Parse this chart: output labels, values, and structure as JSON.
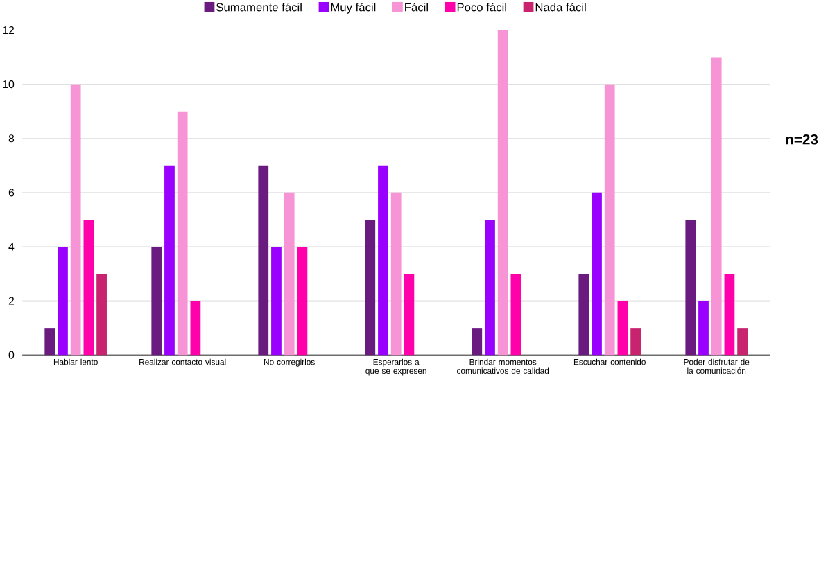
{
  "chart_data": {
    "type": "bar",
    "categories": [
      "Hablar lento",
      "Realizar contacto visual",
      "No corregirlos",
      "Esperarlos a que se expresen",
      "Brindar momentos comunicativos de calidad",
      "Escuchar contenido",
      "Poder disfrutar de la comunicación"
    ],
    "series": [
      {
        "name": "Sumamente fácil",
        "color": "#6a1b80",
        "values": [
          1,
          4,
          7,
          5,
          1,
          3,
          5
        ]
      },
      {
        "name": "Muy fácil",
        "color": "#9900ff",
        "values": [
          4,
          7,
          4,
          7,
          5,
          6,
          2
        ]
      },
      {
        "name": "Fácil",
        "color": "#f794d6",
        "values": [
          10,
          9,
          6,
          6,
          12,
          10,
          11
        ]
      },
      {
        "name": "Poco fácil",
        "color": "#ff00aa",
        "values": [
          5,
          2,
          4,
          3,
          3,
          2,
          3
        ]
      },
      {
        "name": "Nada fácil",
        "color": "#c8236f",
        "values": [
          3,
          0,
          0,
          0,
          0,
          1,
          1
        ]
      }
    ],
    "ylim": [
      0,
      12
    ],
    "yticks": [
      0,
      2,
      4,
      6,
      8,
      10,
      12
    ],
    "grid": "y",
    "legend": "top",
    "annotations": [
      "n=23"
    ]
  }
}
